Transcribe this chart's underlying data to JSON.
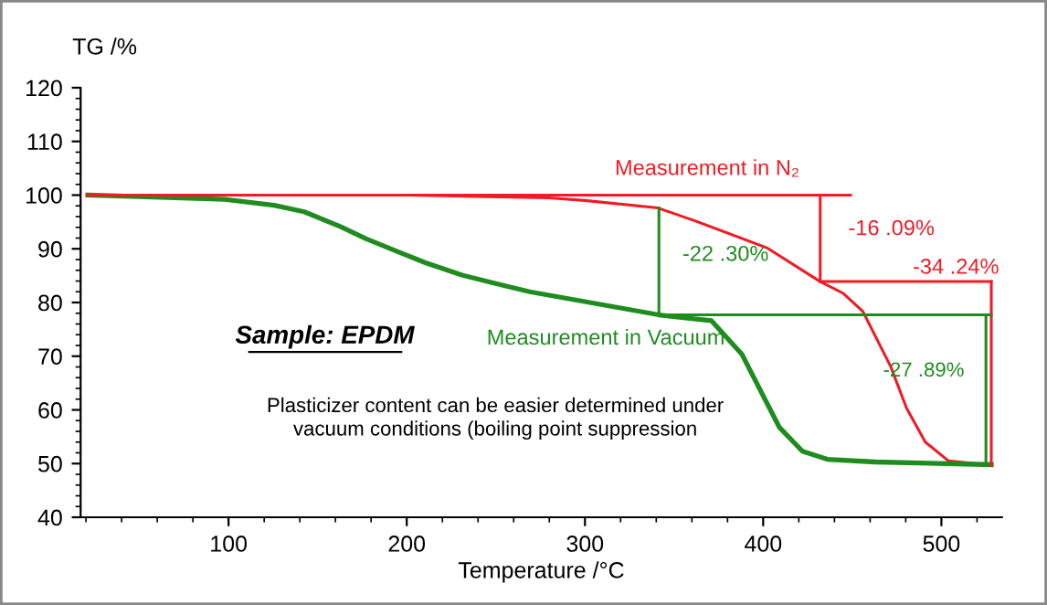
{
  "chart_data": {
    "type": "line",
    "xlabel": "Temperature /°C",
    "ylabel": "TG /%",
    "xlim": [
      17,
      534
    ],
    "ylim": [
      40,
      120
    ],
    "xticks": [
      100,
      200,
      300,
      400,
      500
    ],
    "yticks": [
      40,
      50,
      60,
      70,
      80,
      90,
      100,
      110,
      120
    ],
    "grid": false,
    "marker": "none",
    "line_style": "solid",
    "series": [
      {
        "color": "#ee1c25",
        "x": [
          21,
          200,
          280,
          300,
          341,
          361,
          402,
          432,
          445,
          456,
          471.5,
          480.5,
          491,
          504,
          528
        ],
        "values": [
          100,
          100,
          99.5,
          99,
          97.6,
          95.3,
          90.2,
          83.9,
          81.7,
          78.3,
          68.1,
          60.3,
          54,
          50.5,
          49.7
        ]
      },
      {
        "color": "#1e8c1e",
        "x": [
          21,
          41.6,
          98,
          125.6,
          142.5,
          163,
          177,
          194,
          210.5,
          231,
          251.5,
          269,
          292.7,
          341.5,
          371,
          388,
          398.5,
          409,
          422,
          436,
          463,
          528
        ],
        "values": [
          100,
          99.8,
          99.2,
          98.1,
          96.9,
          94.1,
          91.9,
          89.6,
          87.4,
          85.1,
          83.4,
          82,
          80.6,
          77.7,
          76.6,
          70.4,
          63.6,
          56.8,
          52.3,
          50.8,
          50.3,
          49.8
        ]
      },
      {
        "color": "#ee1c25",
        "x": [
          21,
          449
        ],
        "values": [
          100,
          100
        ]
      },
      {
        "color": "#ee1c25",
        "x": [
          432,
          432
        ],
        "values": [
          100,
          83.9
        ]
      },
      {
        "color": "#ee1c25",
        "x": [
          432,
          528
        ],
        "values": [
          83.9,
          83.9
        ]
      },
      {
        "color": "#ee1c25",
        "x": [
          528,
          528
        ],
        "values": [
          83.9,
          49.7
        ]
      },
      {
        "color": "#1e8c1e",
        "x": [
          341.5,
          341.5
        ],
        "values": [
          97.6,
          77.7
        ]
      },
      {
        "color": "#1e8c1e",
        "x": [
          341.5,
          528
        ],
        "values": [
          77.7,
          77.7
        ]
      },
      {
        "color": "#1e8c1e",
        "x": [
          525,
          525
        ],
        "values": [
          77.7,
          49.8
        ]
      }
    ],
    "annotations": [
      "Measurement in N₂",
      "-16 .09%",
      "-34 .24%",
      "-22 .30%",
      "-27 .89%",
      "Measurement in Vacuum",
      "Sample: EPDM",
      "Plasticizer content can be easier determined under\nvacuum conditions (boiling point suppression"
    ]
  }
}
